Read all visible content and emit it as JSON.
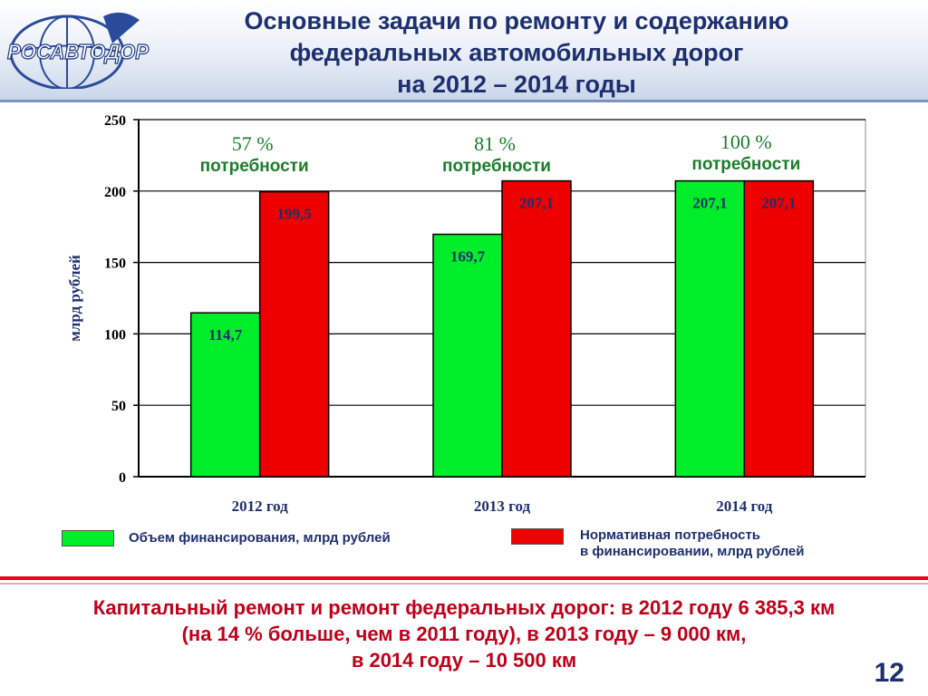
{
  "logo": {
    "text": "РОСАВТОДОР"
  },
  "header": {
    "title_lines": [
      "Основные задачи по ремонту и содержанию",
      "федеральных автомобильных дорог",
      "на 2012 – 2014 годы"
    ]
  },
  "colors": {
    "funding": "#00ee2a",
    "need": "#ee0000",
    "title": "#1d2f6e",
    "summary": "#c0001a",
    "percent_text": "#1b7d2b"
  },
  "chart_data": {
    "type": "bar",
    "categories": [
      "2012 год",
      "2013 год",
      "2014 год"
    ],
    "series": [
      {
        "name": "Объем финансирования, млрд рублей",
        "values": [
          114.7,
          169.7,
          207.1
        ],
        "labels": [
          "114,7",
          "169,7",
          "207,1"
        ]
      },
      {
        "name": "Нормативная потребность в финансировании, млрд рублей",
        "values": [
          199.5,
          207.1,
          207.1
        ],
        "labels": [
          "199,5",
          "207,1",
          "207,1"
        ]
      }
    ],
    "ylabel": "млрд рублей",
    "ylim": [
      0,
      250
    ],
    "yticks": [
      "0",
      "50",
      "100",
      "150",
      "200",
      "250"
    ],
    "grid": true,
    "annotations": [
      {
        "percent": "57 %",
        "text": "потребности"
      },
      {
        "percent": "81 %",
        "text": "потребности"
      },
      {
        "percent": "100 %",
        "text": "потребности"
      }
    ]
  },
  "legend": {
    "funding_label": "Объем финансирования, млрд рублей",
    "need_label_line1": "Нормативная потребность",
    "need_label_line2": "в финансировании, млрд рублей"
  },
  "summary": {
    "line1": "Капитальный ремонт и ремонт федеральных дорог: в 2012 году 6 385,3 км",
    "line2": "(на 14 % больше, чем в 2011 году), в 2013 году – 9 000 км,",
    "line3": "в 2014 году – 10 500 км"
  },
  "page_number": "12"
}
